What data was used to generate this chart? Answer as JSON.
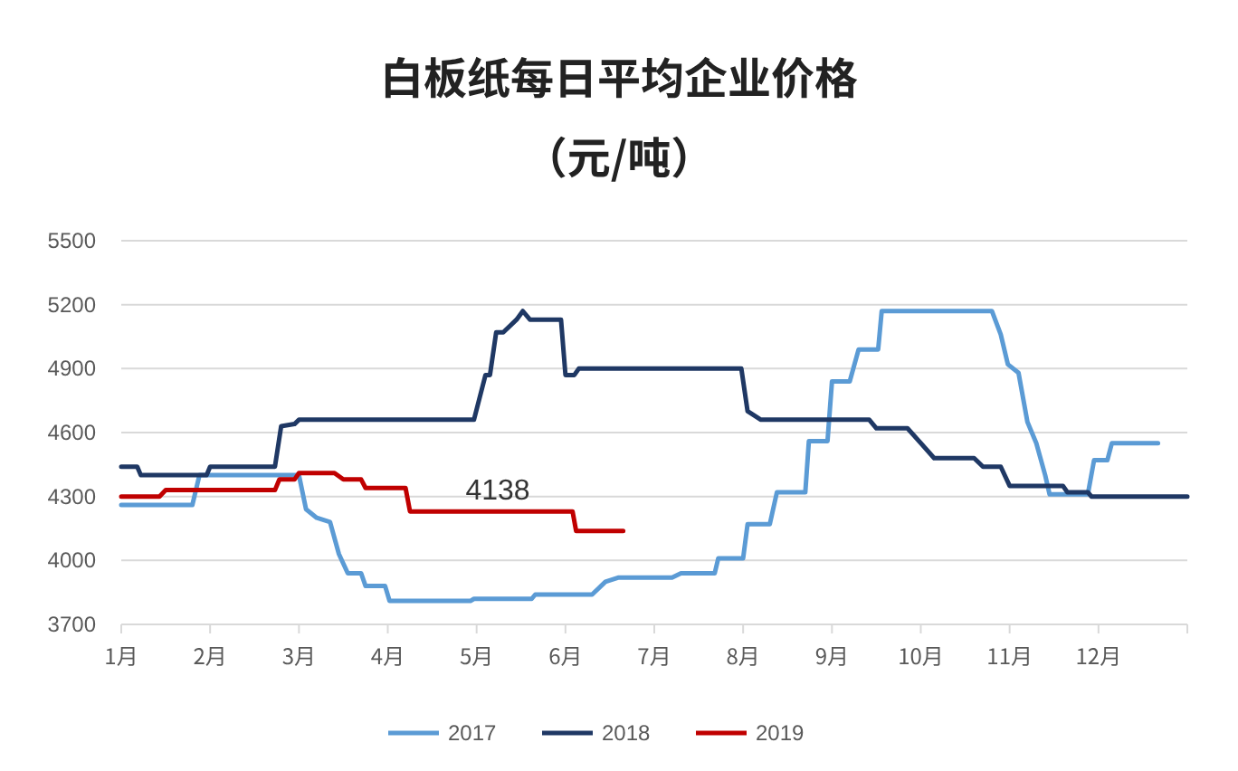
{
  "chart_data": {
    "type": "line",
    "title": "白板纸每日平均企业价格",
    "subtitle": "（元/吨）",
    "xlim": [
      1,
      13
    ],
    "xticks": [
      {
        "value": 1,
        "label": "1月"
      },
      {
        "value": 2,
        "label": "2月"
      },
      {
        "value": 3,
        "label": "3月"
      },
      {
        "value": 4,
        "label": "4月"
      },
      {
        "value": 5,
        "label": "5月"
      },
      {
        "value": 6,
        "label": "6月"
      },
      {
        "value": 7,
        "label": "7月"
      },
      {
        "value": 8,
        "label": "8月"
      },
      {
        "value": 9,
        "label": "9月"
      },
      {
        "value": 10,
        "label": "10月"
      },
      {
        "value": 11,
        "label": "11月"
      },
      {
        "value": 12,
        "label": "12月"
      },
      {
        "value": 13,
        "label": null
      }
    ],
    "ylim": [
      3700,
      5500
    ],
    "yticks": [
      3700,
      4000,
      4300,
      4600,
      4900,
      5200,
      5500
    ],
    "grid": "y",
    "legend": "bottom",
    "annotations": [
      "4138"
    ],
    "series": [
      {
        "name": "2017",
        "color": "#5b9bd5",
        "x": [
          1,
          1.8,
          1.88,
          3.0,
          3.08,
          3.2,
          3.35,
          3.45,
          3.55,
          3.7,
          3.75,
          3.97,
          4.02,
          4.93,
          4.97,
          5.62,
          5.66,
          6.3,
          6.45,
          6.6,
          7.2,
          7.3,
          7.68,
          7.72,
          8.0,
          8.05,
          8.3,
          8.38,
          8.7,
          8.74,
          8.95,
          9.0,
          9.2,
          9.3,
          9.52,
          9.56,
          10.8,
          10.9,
          10.98,
          11.1,
          11.2,
          11.3,
          11.4,
          11.45,
          11.88,
          11.95,
          12.1,
          12.15,
          12.67
        ],
        "values": [
          4260,
          4260,
          4400,
          4400,
          4240,
          4200,
          4180,
          4030,
          3940,
          3940,
          3880,
          3880,
          3810,
          3810,
          3820,
          3820,
          3840,
          3840,
          3900,
          3920,
          3920,
          3940,
          3940,
          4010,
          4010,
          4170,
          4170,
          4320,
          4320,
          4560,
          4560,
          4840,
          4840,
          4990,
          4990,
          5170,
          5170,
          5060,
          4920,
          4880,
          4650,
          4550,
          4400,
          4310,
          4310,
          4470,
          4470,
          4550,
          4550
        ]
      },
      {
        "name": "2018",
        "color": "#1f3864",
        "x": [
          1,
          1.18,
          1.22,
          1.96,
          2.0,
          2.73,
          2.8,
          2.95,
          3.0,
          4.97,
          5.1,
          5.15,
          5.22,
          5.3,
          5.45,
          5.52,
          5.6,
          5.95,
          6.0,
          6.1,
          6.15,
          7.98,
          8.05,
          8.2,
          9.42,
          9.5,
          9.85,
          10.15,
          10.6,
          10.7,
          10.9,
          11.0,
          11.6,
          11.65,
          11.88,
          11.92,
          13
        ],
        "values": [
          4440,
          4440,
          4400,
          4400,
          4440,
          4440,
          4630,
          4640,
          4660,
          4660,
          4870,
          4870,
          5070,
          5070,
          5130,
          5170,
          5130,
          5130,
          4870,
          4870,
          4900,
          4900,
          4700,
          4660,
          4660,
          4620,
          4620,
          4480,
          4480,
          4440,
          4440,
          4350,
          4350,
          4320,
          4320,
          4300,
          4300
        ]
      },
      {
        "name": "2019",
        "color": "#c00000",
        "x": [
          1,
          1.43,
          1.5,
          2.73,
          2.78,
          2.95,
          3.0,
          3.4,
          3.5,
          3.7,
          3.75,
          4.2,
          4.25,
          6.08,
          6.12,
          6.65
        ],
        "values": [
          4300,
          4300,
          4330,
          4330,
          4380,
          4380,
          4410,
          4410,
          4380,
          4380,
          4340,
          4340,
          4230,
          4230,
          4138,
          4138
        ]
      }
    ]
  }
}
